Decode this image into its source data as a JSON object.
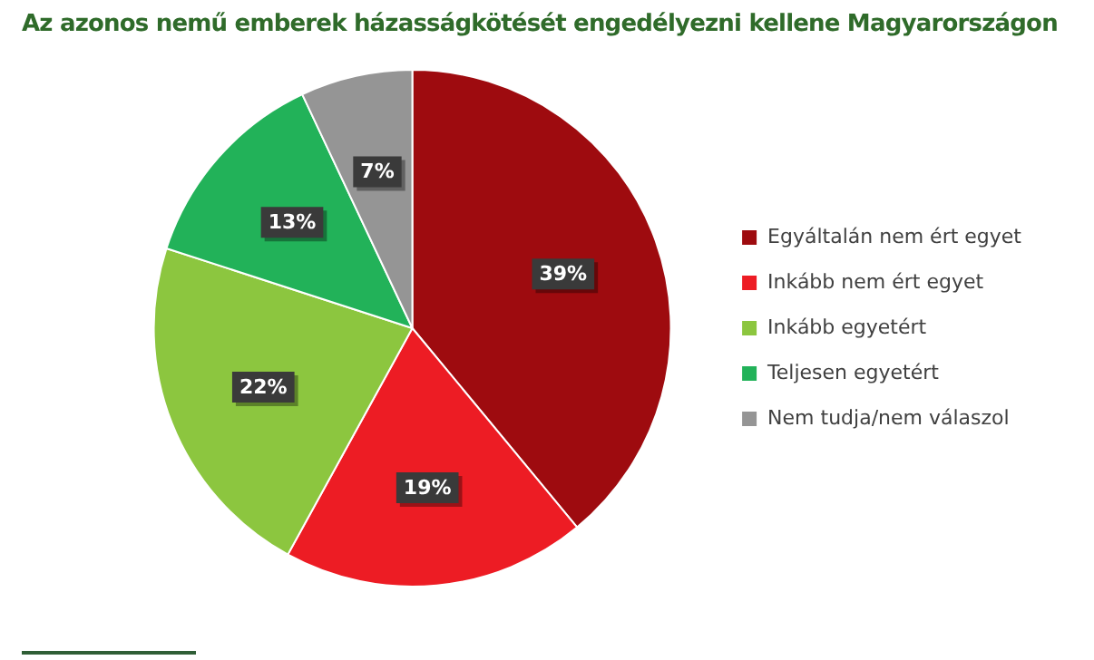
{
  "chart_data": {
    "type": "pie",
    "title": "Az azonos nemű emberek házasságkötését engedélyezni kellene Magyarországon",
    "categories": [
      "Egyáltalán nem ért egyet",
      "Inkább nem ért egyet",
      "Inkább egyetért",
      "Teljesen egyetért",
      "Nem tudja/nem válaszol"
    ],
    "values": [
      39,
      19,
      22,
      13,
      7
    ],
    "colors": [
      "#9e0b0f",
      "#ed1c24",
      "#8cc63f",
      "#22b259",
      "#959595"
    ],
    "value_labels": [
      "39%",
      "19%",
      "22%",
      "13%",
      "7%"
    ],
    "legend": "right"
  }
}
